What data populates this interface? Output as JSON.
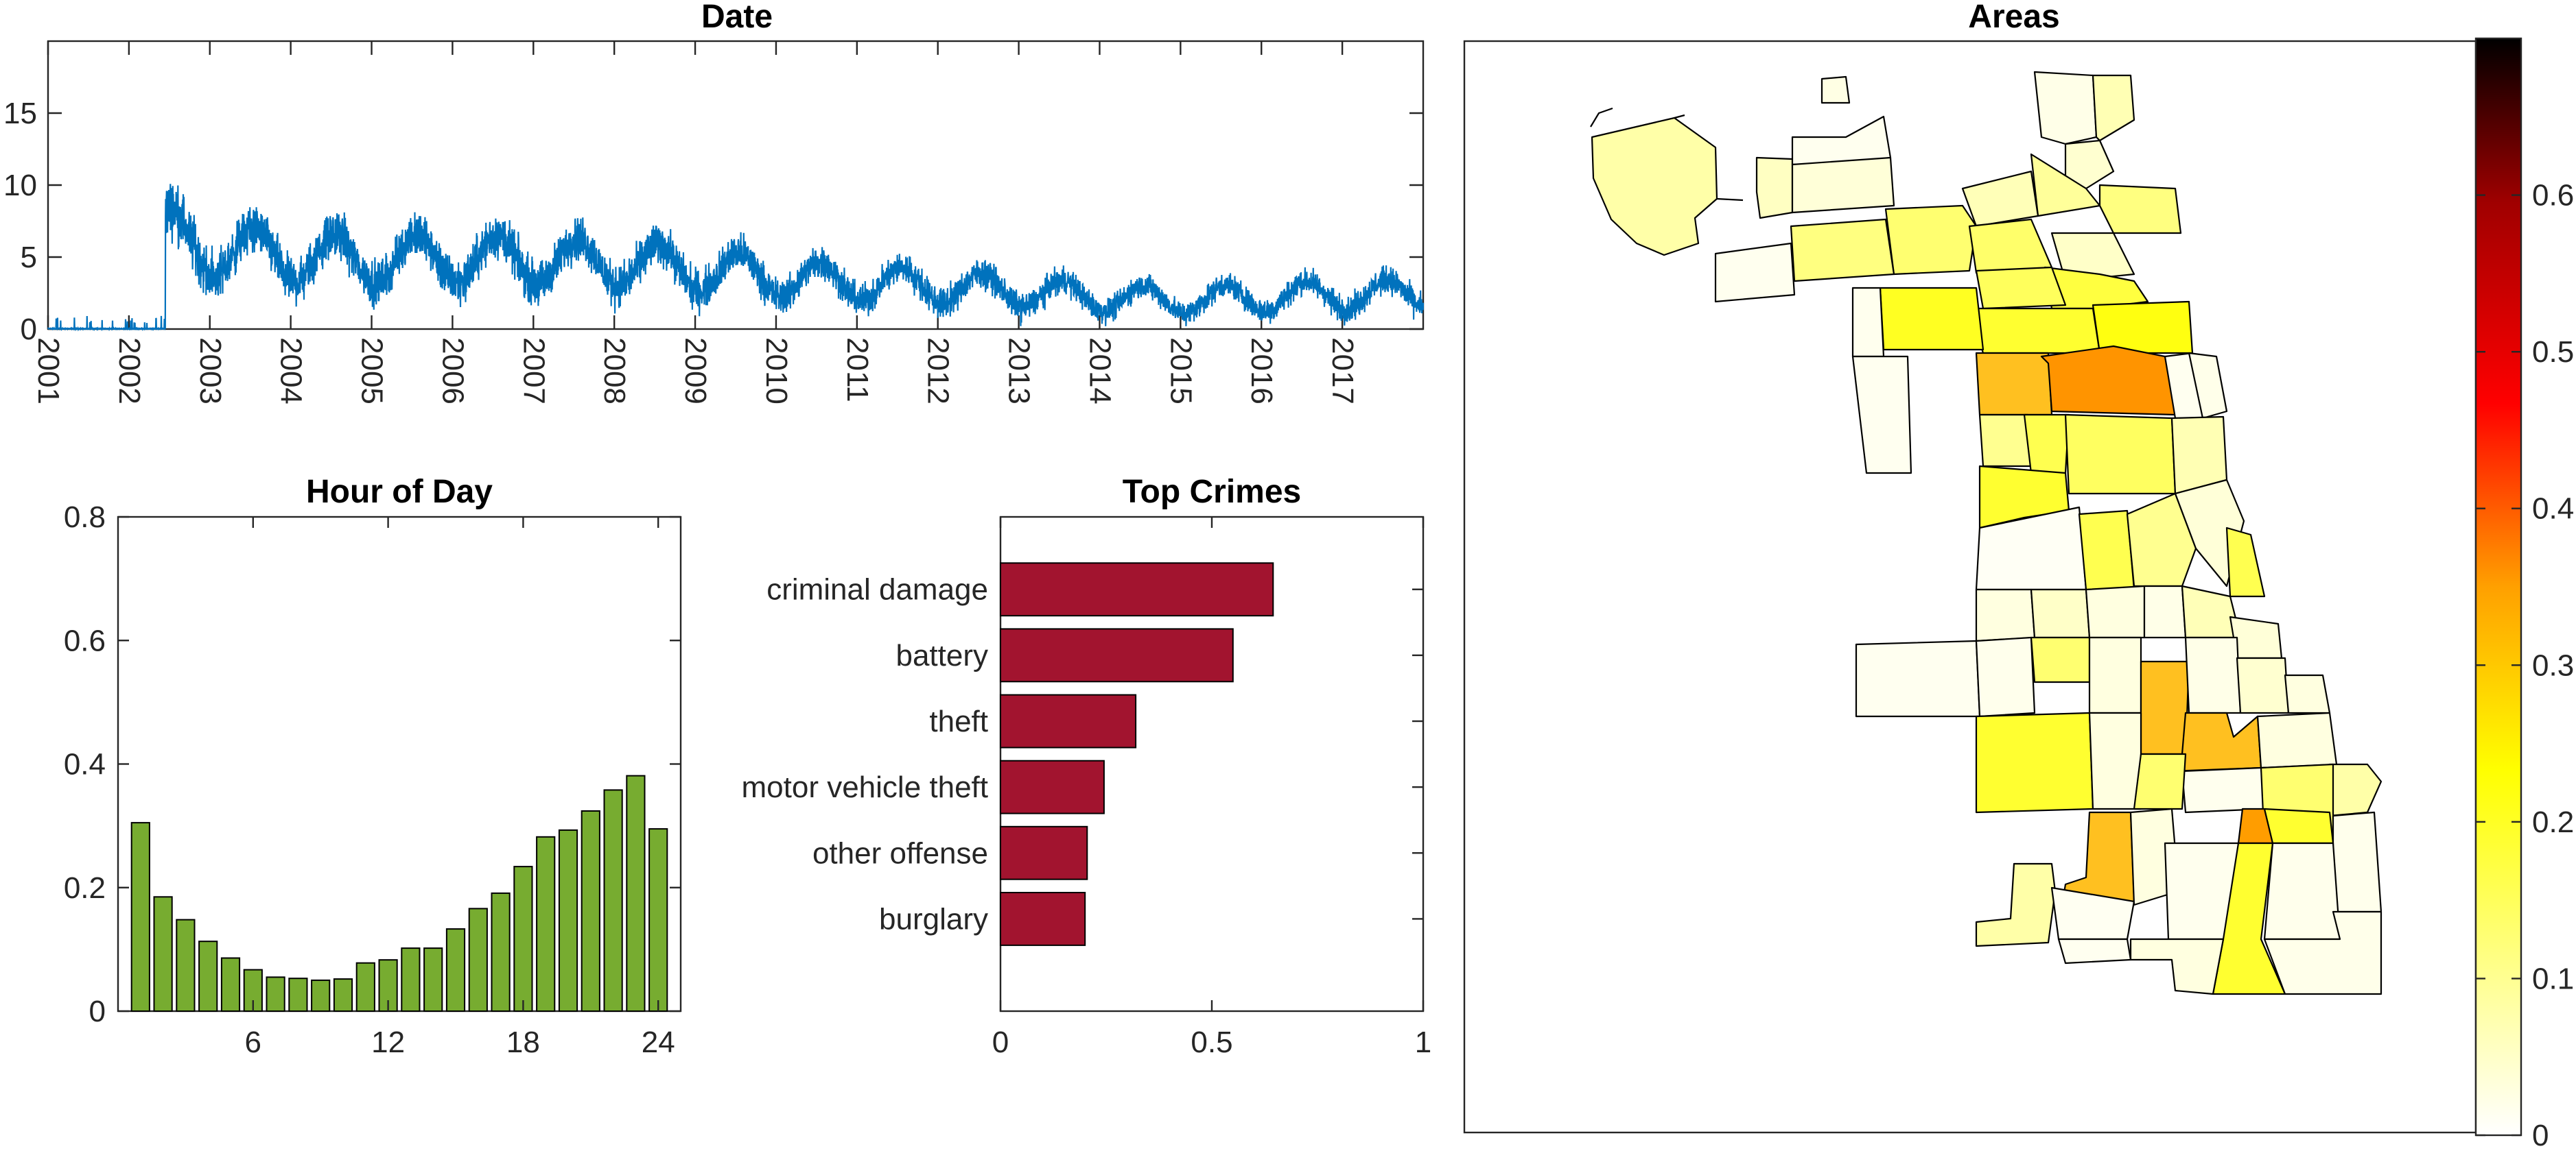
{
  "colors": {
    "date_line": "#0072BD",
    "hour_bars": "#77AC30",
    "crime_bars": "#A2142F",
    "colormap": "hot (reversed)"
  },
  "chart_data": [
    {
      "id": "date",
      "type": "line",
      "title": "Date",
      "xlabel": "",
      "ylabel": "",
      "x_tick_labels": [
        "2001",
        "2002",
        "2003",
        "2004",
        "2005",
        "2006",
        "2007",
        "2008",
        "2009",
        "2010",
        "2011",
        "2012",
        "2013",
        "2014",
        "2015",
        "2016",
        "2017"
      ],
      "y_ticks": [
        0,
        5,
        10,
        15
      ],
      "xlim": [
        "2001-01-01",
        "2018-01-01"
      ],
      "ylim": [
        0,
        20
      ],
      "trend": [
        {
          "year": 2001.0,
          "value": 0.2
        },
        {
          "year": 2002.4,
          "value": 0.3
        },
        {
          "year": 2002.45,
          "value": 6.5
        },
        {
          "year": 2003.0,
          "value": 5.5
        },
        {
          "year": 2004.0,
          "value": 5.0
        },
        {
          "year": 2005.0,
          "value": 4.8
        },
        {
          "year": 2006.0,
          "value": 4.9
        },
        {
          "year": 2007.0,
          "value": 4.8
        },
        {
          "year": 2008.0,
          "value": 4.6
        },
        {
          "year": 2009.0,
          "value": 4.2
        },
        {
          "year": 2010.0,
          "value": 3.6
        },
        {
          "year": 2011.0,
          "value": 3.2
        },
        {
          "year": 2012.0,
          "value": 3.0
        },
        {
          "year": 2013.0,
          "value": 2.6
        },
        {
          "year": 2014.0,
          "value": 2.2
        },
        {
          "year": 2015.0,
          "value": 2.0
        },
        {
          "year": 2016.0,
          "value": 2.2
        },
        {
          "year": 2017.0,
          "value": 2.4
        },
        {
          "year": 2018.0,
          "value": 2.4
        }
      ],
      "seasonal_amplitude": 1.3,
      "noise_amplitude": 1.0,
      "grid": false
    },
    {
      "id": "hour",
      "type": "bar",
      "title": "Hour of Day",
      "xlabel": "",
      "ylabel": "",
      "categories": [
        1,
        2,
        3,
        4,
        5,
        6,
        7,
        8,
        9,
        10,
        11,
        12,
        13,
        14,
        15,
        16,
        17,
        18,
        19,
        20,
        21,
        22,
        23,
        24
      ],
      "values": [
        0.305,
        0.185,
        0.148,
        0.113,
        0.086,
        0.067,
        0.055,
        0.053,
        0.05,
        0.052,
        0.078,
        0.083,
        0.102,
        0.102,
        0.133,
        0.166,
        0.191,
        0.234,
        0.282,
        0.293,
        0.324,
        0.358,
        0.381,
        0.295
      ],
      "x_ticks": [
        6,
        12,
        18,
        24
      ],
      "y_ticks": [
        0,
        0.2,
        0.4,
        0.6,
        0.8
      ],
      "x_tick_labels": [
        "6",
        "12",
        "18",
        "24"
      ],
      "y_tick_labels": [
        "0",
        "0.2",
        "0.4",
        "0.6",
        "0.8"
      ],
      "xlim": [
        0,
        25
      ],
      "ylim": [
        0,
        0.8
      ],
      "grid": false
    },
    {
      "id": "crimes",
      "type": "bar",
      "orientation": "horizontal",
      "title": "Top Crimes",
      "xlabel": "",
      "ylabel": "",
      "categories": [
        "criminal damage",
        "battery",
        "theft",
        "motor vehicle theft",
        "other offense",
        "burglary"
      ],
      "values": [
        0.645,
        0.55,
        0.32,
        0.245,
        0.205,
        0.2
      ],
      "x_ticks": [
        0,
        0.5,
        1
      ],
      "x_tick_labels": [
        "0",
        "0.5",
        "1"
      ],
      "xlim": [
        0,
        1
      ],
      "grid": false
    },
    {
      "id": "areas",
      "type": "heatmap",
      "title": "Areas",
      "colorbar": {
        "colormap": "hot (reversed)",
        "range": [
          0,
          0.7
        ],
        "ticks": [
          0,
          0.1,
          0.2,
          0.3,
          0.4,
          0.5,
          0.6
        ],
        "tick_labels": [
          "0",
          "0.1",
          "0.2",
          "0.3",
          "0.4",
          "0.5",
          "0.6"
        ]
      }
    }
  ]
}
